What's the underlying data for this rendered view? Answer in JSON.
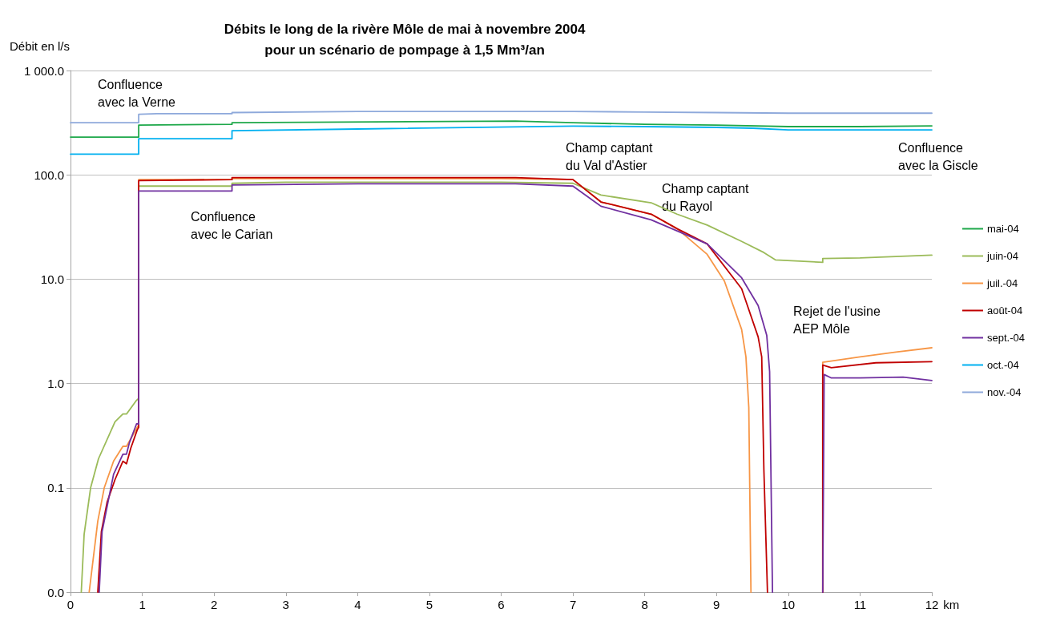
{
  "chart_data": {
    "type": "line",
    "title": "Débits le long de la rivère Môle de mai à novembre 2004\npour un scénario de pompage à 1,5 Mm³/an",
    "ylabel": "Débit en l/s",
    "xlabel": "km",
    "xlim": [
      0,
      12
    ],
    "xticks": [
      0,
      1,
      2,
      3,
      4,
      5,
      6,
      7,
      8,
      9,
      10,
      11,
      12
    ],
    "ylim": [
      0.01,
      1000
    ],
    "yticks": [
      {
        "value": 0.01,
        "label": "0.0"
      },
      {
        "value": 0.1,
        "label": "0.1"
      },
      {
        "value": 1,
        "label": "1.0"
      },
      {
        "value": 10,
        "label": "10.0"
      },
      {
        "value": 100,
        "label": "100.0"
      },
      {
        "value": 1000,
        "label": "1 000.0"
      }
    ],
    "log": "y",
    "grid": "y",
    "legend": "right",
    "marker": "none",
    "line_style": "solid",
    "series": [
      {
        "name": "mai-04",
        "color": "#1ea84a",
        "x": [
          0,
          0.95,
          0.95,
          2.25,
          2.25,
          6.2,
          7,
          8,
          9,
          10,
          11,
          12
        ],
        "values": [
          230,
          230,
          300,
          305,
          316,
          327,
          316,
          305,
          300,
          290,
          290,
          295
        ]
      },
      {
        "name": "juin-04",
        "color": "#9bbb59",
        "x": [
          0.15,
          0.19,
          0.28,
          0.39,
          0.62,
          0.73,
          0.78,
          0.92,
          0.95,
          0.95,
          2.25,
          2.25,
          3,
          6,
          7.0,
          7.39,
          8.09,
          8.45,
          8.87,
          9.35,
          9.66,
          9.82,
          10.48,
          10.48,
          11,
          12
        ],
        "values": [
          0.01,
          0.036,
          0.1,
          0.19,
          0.43,
          0.51,
          0.51,
          0.69,
          0.72,
          78,
          78,
          83,
          85,
          85,
          83,
          64,
          54,
          42,
          33,
          23,
          18,
          15.3,
          14.5,
          15.8,
          16,
          17
        ]
      },
      {
        "name": "juil.-04",
        "color": "#f79646",
        "x": [
          0.26,
          0.38,
          0.47,
          0.6,
          0.73,
          0.78,
          0.93,
          0.95,
          0.95,
          2.25,
          2.25,
          6,
          7.0,
          7.39,
          8.09,
          8.45,
          8.87,
          9.11,
          9.35,
          9.41,
          9.45,
          9.48,
          10,
          10.48,
          10.48,
          11,
          11.5,
          12
        ],
        "values": [
          0.01,
          0.048,
          0.1,
          0.18,
          0.25,
          0.25,
          0.38,
          0.4,
          90,
          90,
          92,
          92,
          90,
          55,
          42,
          30.5,
          17.3,
          9.6,
          3.3,
          1.8,
          0.59,
          0.01,
          null,
          0.01,
          1.6,
          1.8,
          2.0,
          2.2
        ]
      },
      {
        "name": "août-04",
        "color": "#c00000",
        "x": [
          0.38,
          0.43,
          0.51,
          0.62,
          0.73,
          0.78,
          0.84,
          0.93,
          0.95,
          0.95,
          2.25,
          2.25,
          6.2,
          7.0,
          7.39,
          8.09,
          8.45,
          8.87,
          9.35,
          9.58,
          9.63,
          9.66,
          9.71,
          10,
          10.48,
          10.48,
          10.6,
          11.22,
          12
        ],
        "values": [
          0.01,
          0.038,
          0.073,
          0.12,
          0.18,
          0.17,
          0.24,
          0.36,
          0.38,
          88,
          90,
          94,
          94,
          90,
          55,
          42,
          30.5,
          21.8,
          8.1,
          2.8,
          1.8,
          0.15,
          0.01,
          null,
          0.01,
          1.5,
          1.42,
          1.58,
          1.62
        ]
      },
      {
        "name": "sept.-04",
        "color": "#7030a0",
        "x": [
          0.4,
          0.44,
          0.6,
          0.73,
          0.78,
          0.82,
          0.92,
          0.95,
          0.95,
          2.25,
          2.25,
          4,
          6.2,
          7.0,
          7.39,
          8.09,
          8.45,
          8.87,
          9.35,
          9.58,
          9.7,
          9.74,
          9.78,
          10,
          10.48,
          10.5,
          10.6,
          11,
          11.6,
          12
        ],
        "values": [
          0.01,
          0.038,
          0.135,
          0.21,
          0.21,
          0.27,
          0.41,
          0.41,
          70,
          70,
          80,
          82,
          82,
          78,
          50,
          37,
          29,
          21.8,
          10.3,
          5.6,
          2.9,
          1.3,
          0.01,
          null,
          0.01,
          1.22,
          1.13,
          1.13,
          1.15,
          1.07
        ]
      },
      {
        "name": "oct.-04",
        "color": "#00b0f0",
        "x": [
          0,
          0.95,
          0.95,
          2.25,
          2.25,
          4,
          7,
          8,
          9,
          9.5,
          10,
          12
        ],
        "values": [
          158,
          158,
          222,
          222,
          265,
          275,
          293,
          290,
          285,
          280,
          270,
          270
        ]
      },
      {
        "name": "nov.-04",
        "color": "#8ea9db",
        "x": [
          0,
          0.95,
          0.95,
          1.2,
          2.25,
          2.25,
          4,
          6,
          7,
          8,
          9,
          10,
          12
        ],
        "values": [
          316,
          316,
          380,
          385,
          385,
          395,
          405,
          405,
          405,
          400,
          395,
          390,
          390
        ]
      }
    ],
    "annotations": [
      "Confluence\navec la Verne",
      "Confluence\navec le Carian",
      "Champ captant\ndu Val d'Astier",
      "Champ captant\ndu Rayol",
      "Confluence\navec la Giscle",
      "Rejet de l'usine\nAEP Môle"
    ]
  }
}
